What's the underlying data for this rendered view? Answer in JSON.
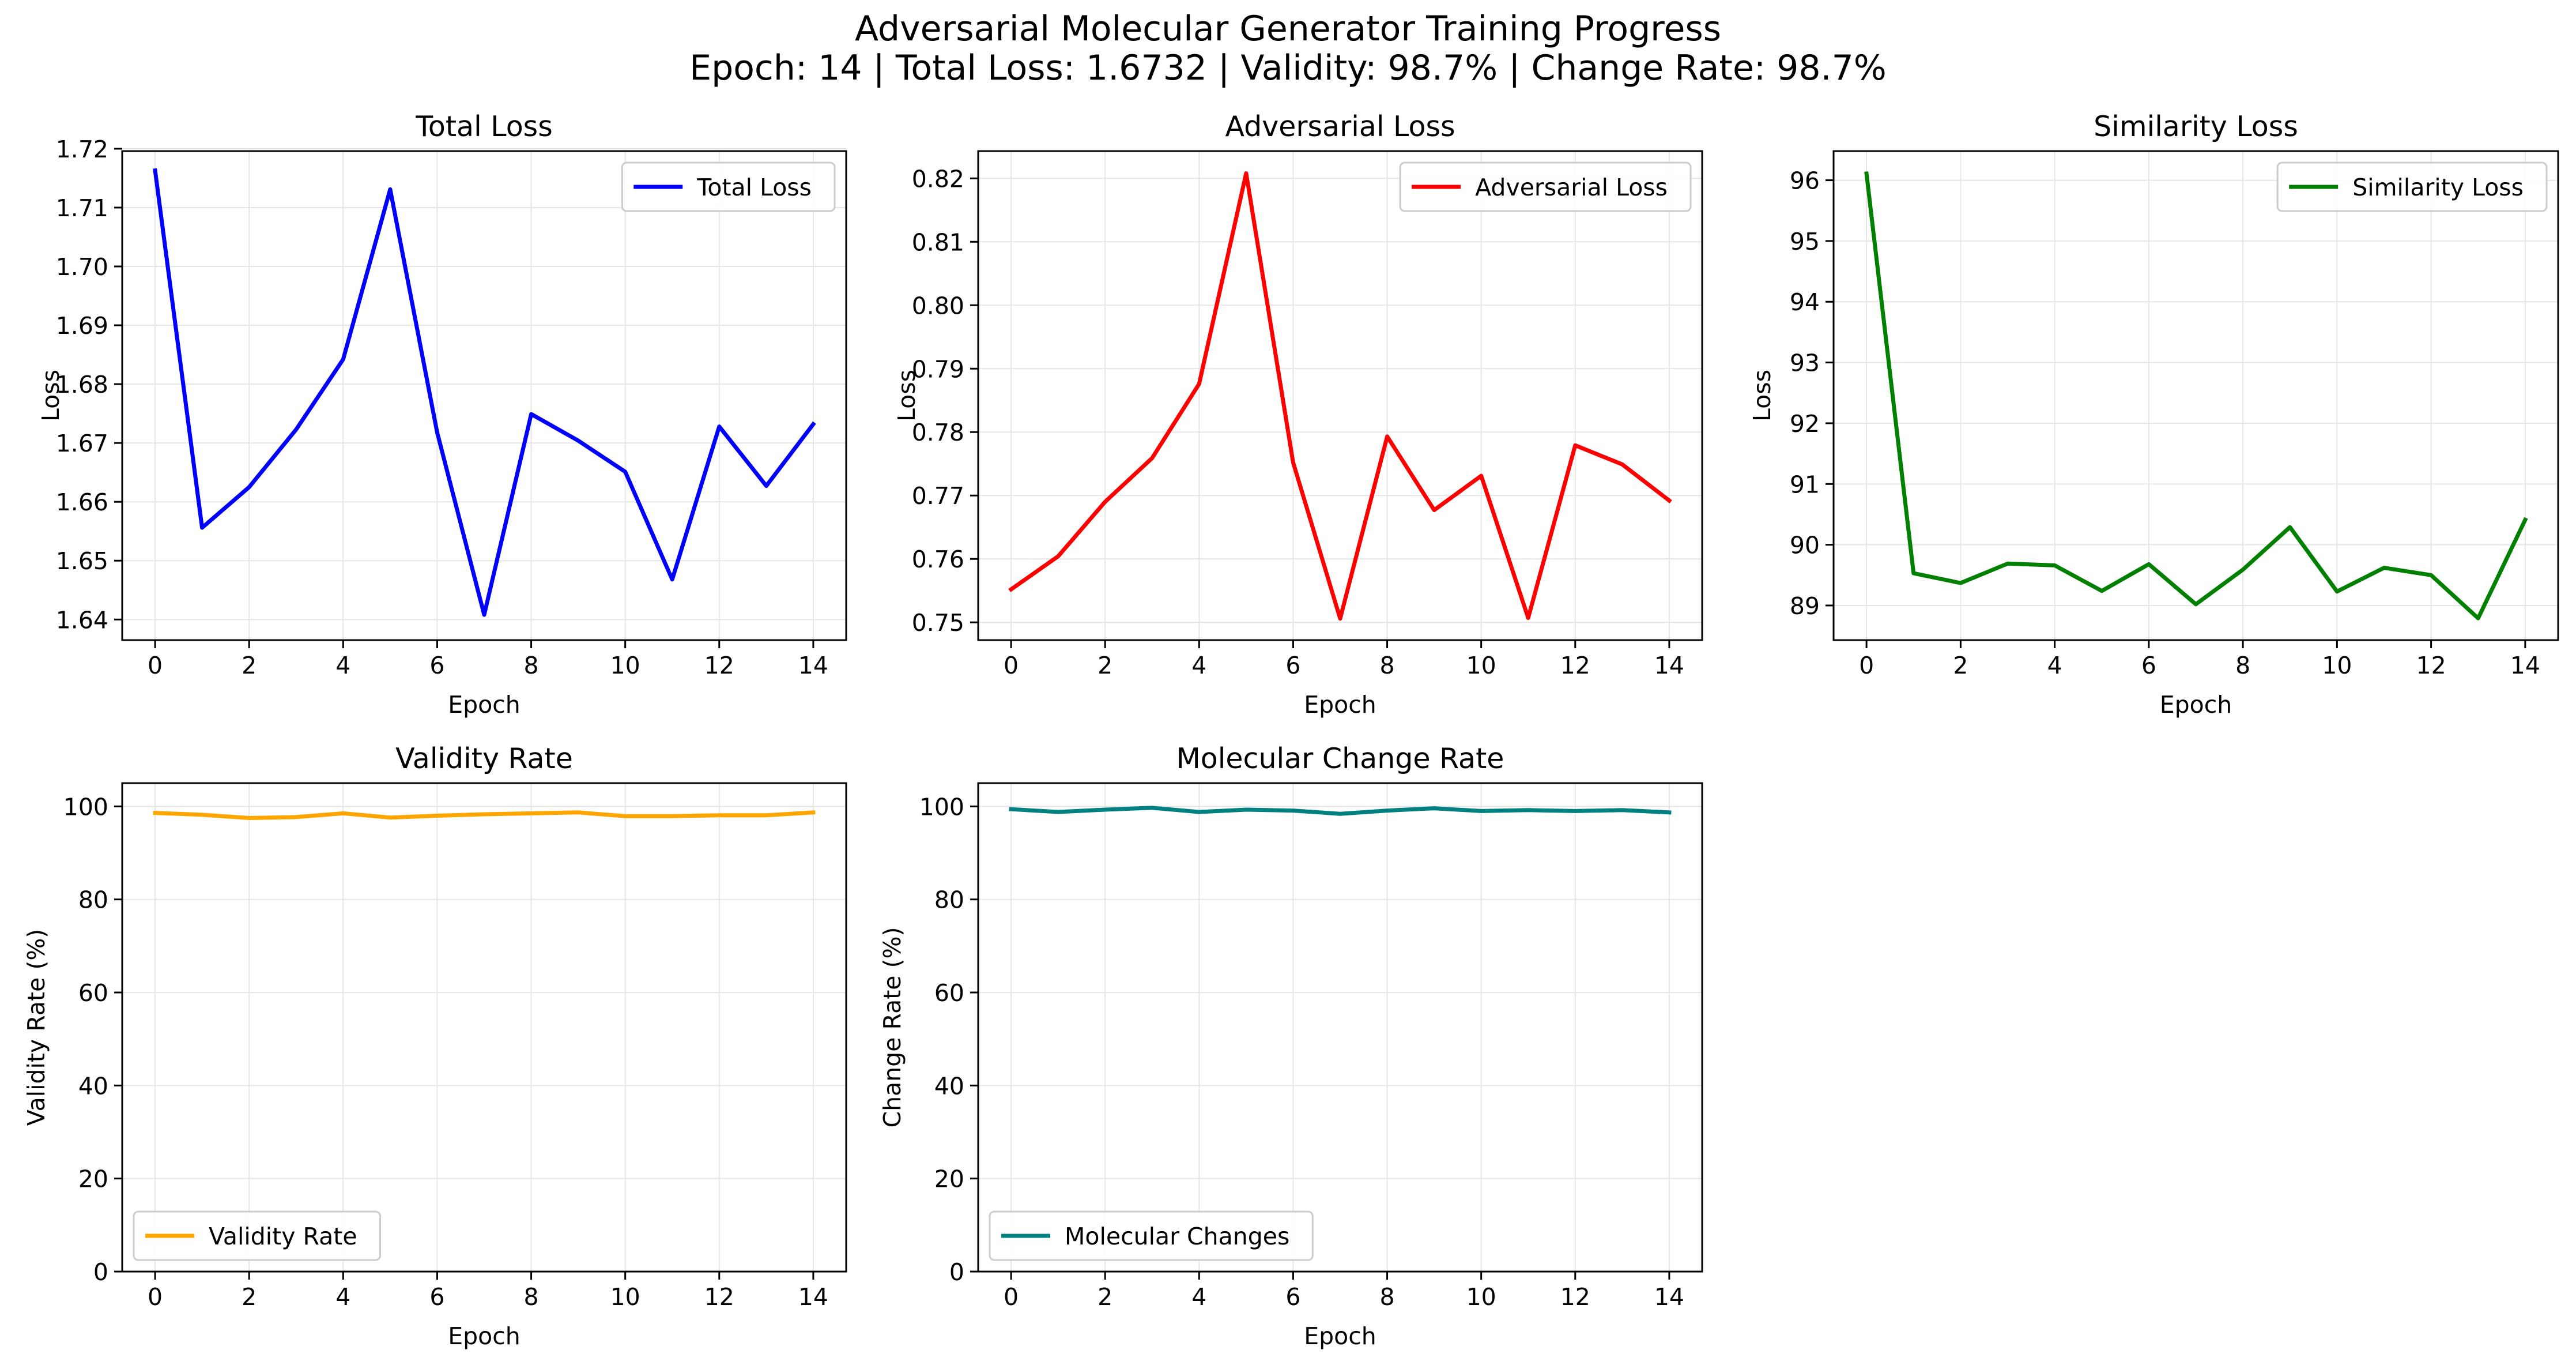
{
  "figure": {
    "title": "Adversarial Molecular Generator Training Progress",
    "subtitle": "Epoch: 14 | Total Loss: 1.6732 | Validity: 98.7% | Change Rate: 98.7%"
  },
  "chart_data": [
    {
      "type": "line",
      "title": "Total Loss",
      "xlabel": "Epoch",
      "ylabel": "Loss",
      "xlim": [
        -0.7,
        14.7
      ],
      "ylim": [
        1.6365,
        1.7196
      ],
      "xticks": [
        0,
        2,
        4,
        6,
        8,
        10,
        12,
        14
      ],
      "yticks": [
        1.64,
        1.65,
        1.66,
        1.67,
        1.68,
        1.69,
        1.7,
        1.71,
        1.72
      ],
      "ytick_labels": [
        "1.64",
        "1.65",
        "1.66",
        "1.67",
        "1.68",
        "1.69",
        "1.70",
        "1.71",
        "1.72"
      ],
      "grid": true,
      "legend_loc": "upper-right",
      "series": [
        {
          "name": "Total Loss",
          "color": "#0000ff",
          "x": [
            0,
            1,
            2,
            3,
            4,
            5,
            6,
            7,
            8,
            9,
            10,
            11,
            12,
            13,
            14
          ],
          "values": [
            1.7163,
            1.6556,
            1.6625,
            1.6723,
            1.6842,
            1.7131,
            1.6718,
            1.6408,
            1.6749,
            1.6704,
            1.6651,
            1.6468,
            1.6728,
            1.6627,
            1.6732
          ]
        }
      ]
    },
    {
      "type": "line",
      "title": "Adversarial Loss",
      "xlabel": "Epoch",
      "ylabel": "Loss",
      "xlim": [
        -0.7,
        14.7
      ],
      "ylim": [
        0.7472,
        0.8243
      ],
      "xticks": [
        0,
        2,
        4,
        6,
        8,
        10,
        12,
        14
      ],
      "yticks": [
        0.75,
        0.76,
        0.77,
        0.78,
        0.79,
        0.8,
        0.81,
        0.82
      ],
      "ytick_labels": [
        "0.75",
        "0.76",
        "0.77",
        "0.78",
        "0.79",
        "0.80",
        "0.81",
        "0.82"
      ],
      "grid": true,
      "legend_loc": "upper-right",
      "series": [
        {
          "name": "Adversarial Loss",
          "color": "#ff0000",
          "x": [
            0,
            1,
            2,
            3,
            4,
            5,
            6,
            7,
            8,
            9,
            10,
            11,
            12,
            13,
            14
          ],
          "values": [
            0.7552,
            0.7604,
            0.769,
            0.7759,
            0.7876,
            0.8208,
            0.7752,
            0.7506,
            0.7793,
            0.7677,
            0.7731,
            0.7507,
            0.7779,
            0.7749,
            0.7692
          ]
        }
      ]
    },
    {
      "type": "line",
      "title": "Similarity Loss",
      "xlabel": "Epoch",
      "ylabel": "Loss",
      "xlim": [
        -0.7,
        14.7
      ],
      "ylim": [
        88.43,
        96.48
      ],
      "xticks": [
        0,
        2,
        4,
        6,
        8,
        10,
        12,
        14
      ],
      "yticks": [
        89,
        90,
        91,
        92,
        93,
        94,
        95,
        96
      ],
      "ytick_labels": [
        "89",
        "90",
        "91",
        "92",
        "93",
        "94",
        "95",
        "96"
      ],
      "grid": true,
      "legend_loc": "upper-right",
      "series": [
        {
          "name": "Similarity Loss",
          "color": "#008000",
          "x": [
            0,
            1,
            2,
            3,
            4,
            5,
            6,
            7,
            8,
            9,
            10,
            11,
            12,
            13,
            14
          ],
          "values": [
            96.11,
            89.53,
            89.37,
            89.69,
            89.66,
            89.24,
            89.68,
            89.02,
            89.59,
            90.29,
            89.23,
            89.62,
            89.5,
            88.79,
            90.41
          ]
        }
      ]
    },
    {
      "type": "line",
      "title": "Validity Rate",
      "xlabel": "Epoch",
      "ylabel": "Validity Rate (%)",
      "xlim": [
        -0.7,
        14.7
      ],
      "ylim": [
        0,
        105
      ],
      "xticks": [
        0,
        2,
        4,
        6,
        8,
        10,
        12,
        14
      ],
      "yticks": [
        0,
        20,
        40,
        60,
        80,
        100
      ],
      "ytick_labels": [
        "0",
        "20",
        "40",
        "60",
        "80",
        "100"
      ],
      "grid": true,
      "legend_loc": "lower-left",
      "series": [
        {
          "name": "Validity Rate",
          "color": "#ffa500",
          "x": [
            0,
            1,
            2,
            3,
            4,
            5,
            6,
            7,
            8,
            9,
            10,
            11,
            12,
            13,
            14
          ],
          "values": [
            98.6,
            98.2,
            97.5,
            97.7,
            98.5,
            97.6,
            98.0,
            98.3,
            98.5,
            98.7,
            97.9,
            97.9,
            98.1,
            98.1,
            98.7
          ]
        }
      ]
    },
    {
      "type": "line",
      "title": "Molecular Change Rate",
      "xlabel": "Epoch",
      "ylabel": "Change Rate (%)",
      "xlim": [
        -0.7,
        14.7
      ],
      "ylim": [
        0,
        105
      ],
      "xticks": [
        0,
        2,
        4,
        6,
        8,
        10,
        12,
        14
      ],
      "yticks": [
        0,
        20,
        40,
        60,
        80,
        100
      ],
      "ytick_labels": [
        "0",
        "20",
        "40",
        "60",
        "80",
        "100"
      ],
      "grid": true,
      "legend_loc": "lower-left",
      "series": [
        {
          "name": "Molecular Changes",
          "color": "#008080",
          "x": [
            0,
            1,
            2,
            3,
            4,
            5,
            6,
            7,
            8,
            9,
            10,
            11,
            12,
            13,
            14
          ],
          "values": [
            99.4,
            98.8,
            99.3,
            99.7,
            98.8,
            99.3,
            99.1,
            98.4,
            99.1,
            99.6,
            99.0,
            99.2,
            99.0,
            99.2,
            98.7
          ]
        }
      ]
    }
  ]
}
